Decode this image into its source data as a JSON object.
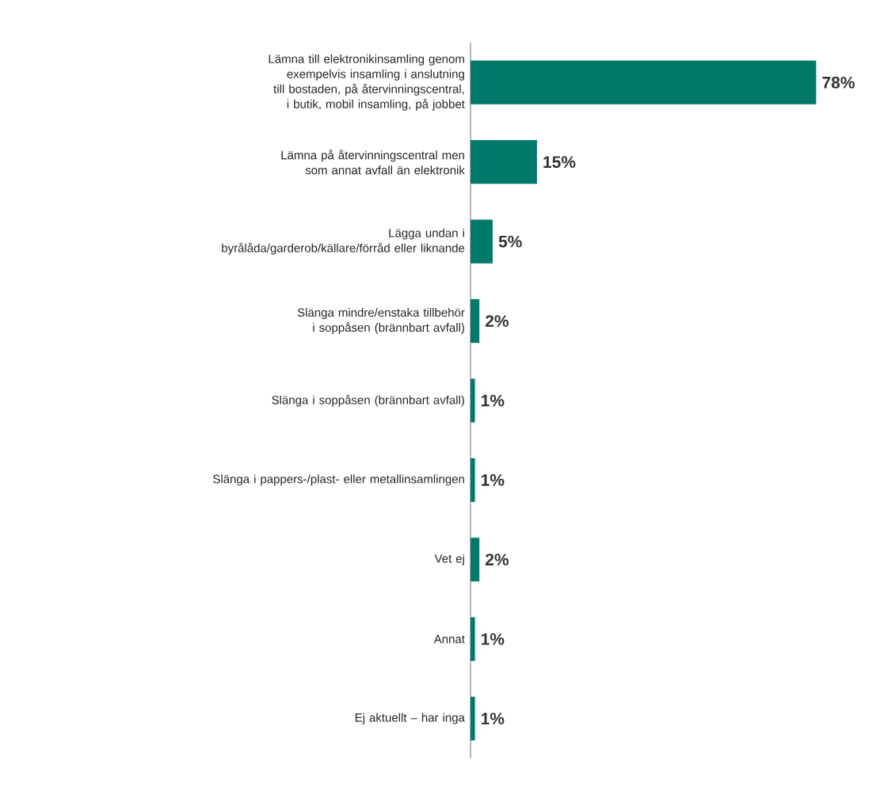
{
  "chart_data": {
    "type": "bar",
    "orientation": "horizontal",
    "color": "#00796b",
    "categories": [
      "Lämna till elektronikinsamling genom exempelvis insamling i anslutning till bostaden, på återvinningscentral, i butik, mobil insamling, på jobbet",
      "Lämna på återvinningscentral men som annat avfall än elektronik",
      "Lägga undan i byrålåda/garderob/källare/förråd eller liknande",
      "Slänga mindre/enstaka tillbehör i soppåsen (brännbart avfall)",
      "Slänga i soppåsen (brännbart avfall)",
      "Slänga i pappers-/plast- eller metallinsamlingen",
      "Vet ej",
      "Annat",
      "Ej aktuellt – har inga"
    ],
    "values": [
      78,
      15,
      5,
      2,
      1,
      1,
      2,
      1,
      1
    ],
    "value_labels": [
      "78%",
      "15%",
      "5%",
      "2%",
      "1%",
      "1%",
      "2%",
      "1%",
      "1%"
    ]
  }
}
